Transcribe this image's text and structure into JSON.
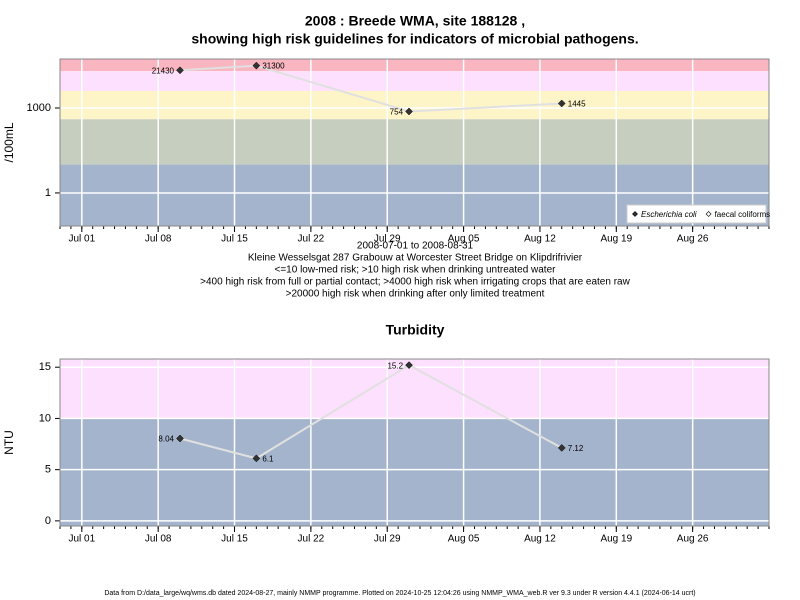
{
  "chart_data": [
    {
      "type": "line",
      "title": [
        "2008 : Breede WMA, site 188128 ,",
        "showing high risk guidelines for indicators of microbial pathogens."
      ],
      "y_label": "/100mL",
      "notes": [
        "2008-07-01 to 2008-08-31",
        "Kleine Wesselsgat 287 Grabouw at Worcester Street Bridge on Klipdrifrivier",
        "<=10 low-med risk; >10 high risk when drinking untreated water",
        ">400 high risk from full or partial contact; >4000 high risk when irrigating crops that are eaten raw",
        ">20000 high risk when drinking after only limited treatment"
      ],
      "log_scale": true,
      "x": [
        "2008-07-10",
        "2008-07-17",
        "2008-07-31",
        "2008-08-14"
      ],
      "series": [
        {
          "name": "Escherichia coli",
          "color": "#333333",
          "values": [
            21430,
            31300,
            754,
            1445
          ]
        },
        {
          "name": "faecal coliforms",
          "color": "#ffffff",
          "values": [
            null,
            null,
            null,
            null
          ]
        }
      ],
      "xlim": [
        "2008-06-29",
        "2008-09-02"
      ],
      "xticks": [
        {
          "value": "2008-07-01",
          "label": "Jul 01"
        },
        {
          "value": "2008-07-08",
          "label": "Jul 08"
        },
        {
          "value": "2008-07-15",
          "label": "Jul 15"
        },
        {
          "value": "2008-07-22",
          "label": "Jul 22"
        },
        {
          "value": "2008-07-29",
          "label": "Jul 29"
        },
        {
          "value": "2008-08-05",
          "label": "Aug 05"
        },
        {
          "value": "2008-08-12",
          "label": "Aug 12"
        },
        {
          "value": "2008-08-19",
          "label": "Aug 19"
        },
        {
          "value": "2008-08-26",
          "label": "Aug 26"
        }
      ],
      "ylim": [
        0.068,
        53700
      ],
      "yticks": [
        1,
        1000
      ],
      "bands": [
        {
          "from": 20000,
          "to": 53700,
          "color": "#f9b5c0"
        },
        {
          "from": 4000,
          "to": 20000,
          "color": "#fde0fd"
        },
        {
          "from": 400,
          "to": 4000,
          "color": "#fdf5c8"
        },
        {
          "from": 10,
          "to": 400,
          "color": "#c6cec0"
        },
        {
          "from": 0.068,
          "to": 10,
          "color": "#a4b4cc"
        }
      ],
      "grid": true,
      "legend": "bottom-right"
    },
    {
      "type": "line",
      "title": "Turbidity",
      "y_label": "NTU",
      "x": [
        "2008-07-10",
        "2008-07-17",
        "2008-07-31",
        "2008-08-14"
      ],
      "values": [
        8.04,
        6.1,
        15.2,
        7.12
      ],
      "color": "#333333",
      "xlim": [
        "2008-06-29",
        "2008-09-02"
      ],
      "xticks": [
        {
          "value": "2008-07-01",
          "label": "Jul 01"
        },
        {
          "value": "2008-07-08",
          "label": "Jul 08"
        },
        {
          "value": "2008-07-15",
          "label": "Jul 15"
        },
        {
          "value": "2008-07-22",
          "label": "Jul 22"
        },
        {
          "value": "2008-07-29",
          "label": "Jul 29"
        },
        {
          "value": "2008-08-05",
          "label": "Aug 05"
        },
        {
          "value": "2008-08-12",
          "label": "Aug 12"
        },
        {
          "value": "2008-08-19",
          "label": "Aug 19"
        },
        {
          "value": "2008-08-26",
          "label": "Aug 26"
        }
      ],
      "ylim": [
        -0.5,
        15.8
      ],
      "yticks": [
        0,
        5,
        10,
        15
      ],
      "bands": [
        {
          "from": 10,
          "to": 15.8,
          "color": "#fde0fd"
        },
        {
          "from": -0.5,
          "to": 10,
          "color": "#a4b4cc"
        }
      ],
      "grid": true
    }
  ],
  "footer": "Data from D:/data_large/wq/wms.db dated 2024-08-27, mainly NMMP programme. Plotted on 2024-10-25 12:04:26 using NMMP_WMA_web.R ver 9.3 under R version 4.4.1 (2024-06-14 ucrt)"
}
